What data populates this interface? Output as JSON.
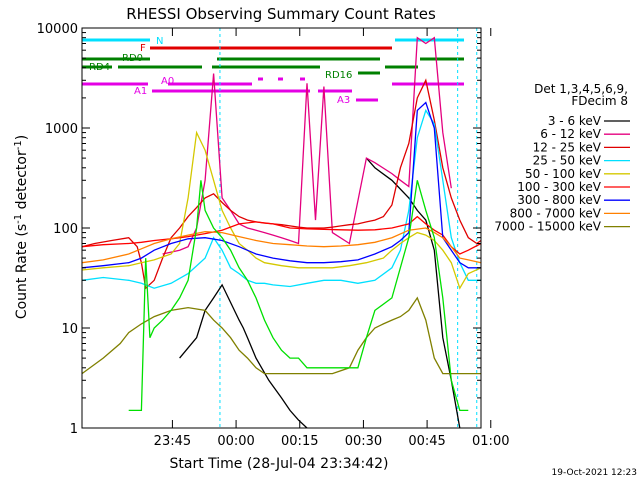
{
  "chart_data": {
    "type": "line",
    "title": "RHESSI Observing Summary Count Rates",
    "xlabel": "Start Time (28-Jul-04 23:34:42)",
    "ylabel": "Count Rate (s-1 detector-1)",
    "ylabel_parts": {
      "pre": "Count Rate (s",
      "sup": "-1",
      "mid": " detector",
      "sup2": "-1",
      "post": ")"
    },
    "yscale": "log",
    "ylim": [
      1,
      10000
    ],
    "xlim": [
      -11,
      83
    ],
    "yticks": [
      {
        "value": 1,
        "label": "1"
      },
      {
        "value": 10,
        "label": "10"
      },
      {
        "value": 100,
        "label": "100"
      },
      {
        "value": 1000,
        "label": "1000"
      },
      {
        "value": 10000,
        "label": "10000"
      }
    ],
    "xticks": [
      {
        "value": 10.3,
        "label": "23:45"
      },
      {
        "value": 25.3,
        "label": "00:00"
      },
      {
        "value": 40.3,
        "label": "00:15"
      },
      {
        "value": 55.3,
        "label": "00:30"
      },
      {
        "value": 70.3,
        "label": "00:45"
      },
      {
        "value": 85.3,
        "label": "01:00"
      }
    ],
    "legend_header": [
      "Det 1,3,4,5,6,9,",
      "FDecim 8"
    ],
    "legend_position": "right",
    "timestamp": "19-Oct-2021 12:23",
    "series": [
      {
        "name": "3 - 6 keV",
        "color": "#000000",
        "x": [
          -11,
          3,
          12,
          16,
          18,
          20,
          22,
          24,
          26,
          27,
          28,
          30,
          33,
          36,
          38,
          40,
          42,
          44,
          46,
          48,
          56,
          58,
          62,
          66,
          68,
          70,
          72,
          74,
          76,
          78,
          80,
          83
        ],
        "y": [
          null,
          null,
          5,
          8,
          15,
          20,
          27,
          18,
          12,
          10,
          8,
          5,
          3,
          2,
          1.5,
          1.2,
          1,
          null,
          null,
          null,
          500,
          400,
          300,
          200,
          150,
          120,
          60,
          8,
          3,
          1,
          null,
          null
        ]
      },
      {
        "name": "6 - 12 keV",
        "color": "#e4007f",
        "x": [
          -11,
          3,
          8,
          12,
          14,
          16,
          18,
          20,
          22,
          24,
          26,
          28,
          30,
          32,
          34,
          36,
          38,
          40,
          42,
          44,
          46,
          48,
          52,
          56,
          58,
          62,
          64,
          66,
          68,
          70,
          72,
          74,
          76,
          78,
          80,
          83
        ],
        "y": [
          null,
          null,
          55,
          60,
          65,
          100,
          300,
          3500,
          200,
          150,
          110,
          100,
          95,
          90,
          85,
          80,
          75,
          70,
          2800,
          120,
          2600,
          90,
          70,
          500,
          450,
          350,
          300,
          260,
          8000,
          7000,
          8000,
          900,
          250,
          null,
          null,
          null
        ]
      },
      {
        "name": "12 - 25 keV",
        "color": "#e00000",
        "x": [
          -11,
          -8,
          -4,
          0,
          2,
          3,
          4,
          6,
          8,
          10,
          12,
          14,
          16,
          18,
          20,
          22,
          24,
          26,
          28,
          30,
          32,
          34,
          36,
          38,
          40,
          42,
          44,
          46,
          48,
          50,
          52,
          54,
          56,
          58,
          60,
          62,
          64,
          66,
          68,
          70,
          72,
          74,
          76,
          78,
          80,
          82,
          83
        ],
        "y": [
          65,
          70,
          75,
          80,
          65,
          45,
          25,
          30,
          50,
          80,
          100,
          130,
          160,
          200,
          220,
          180,
          150,
          130,
          120,
          115,
          112,
          110,
          108,
          105,
          102,
          100,
          100,
          100,
          102,
          105,
          108,
          110,
          115,
          120,
          130,
          170,
          400,
          700,
          2000,
          3000,
          1200,
          400,
          200,
          120,
          80,
          70,
          75
        ]
      },
      {
        "name": "25 - 50 keV",
        "color": "#00e0ff",
        "x": [
          -11,
          -6,
          0,
          3,
          6,
          10,
          14,
          18,
          20,
          22,
          24,
          26,
          28,
          30,
          32,
          34,
          38,
          42,
          46,
          50,
          54,
          58,
          62,
          64,
          66,
          68,
          70,
          72,
          74,
          76,
          78,
          80,
          83
        ],
        "y": [
          30,
          32,
          30,
          28,
          25,
          28,
          35,
          50,
          80,
          60,
          40,
          35,
          30,
          28,
          28,
          27,
          26,
          28,
          30,
          30,
          28,
          30,
          40,
          60,
          150,
          800,
          1500,
          1100,
          300,
          80,
          45,
          30,
          30
        ]
      },
      {
        "name": "50 - 100 keV",
        "color": "#d4c800",
        "x": [
          -11,
          -6,
          0,
          3,
          6,
          10,
          12,
          14,
          16,
          18,
          20,
          22,
          24,
          26,
          28,
          30,
          32,
          36,
          40,
          44,
          48,
          52,
          56,
          60,
          62,
          64,
          66,
          68,
          70,
          72,
          74,
          76,
          78,
          80,
          83
        ],
        "y": [
          38,
          40,
          42,
          45,
          48,
          55,
          70,
          200,
          900,
          600,
          300,
          150,
          100,
          70,
          60,
          50,
          45,
          42,
          40,
          40,
          40,
          42,
          45,
          50,
          60,
          70,
          80,
          90,
          85,
          75,
          60,
          45,
          25,
          35,
          40
        ]
      },
      {
        "name": "100 - 300 keV",
        "color": "#ff0000",
        "x": [
          -11,
          -6,
          0,
          3,
          6,
          10,
          14,
          18,
          22,
          26,
          30,
          34,
          38,
          42,
          46,
          50,
          54,
          58,
          62,
          66,
          68,
          70,
          72,
          74,
          76,
          78,
          80,
          83
        ],
        "y": [
          65,
          68,
          70,
          72,
          75,
          78,
          82,
          88,
          95,
          110,
          115,
          110,
          100,
          98,
          97,
          96,
          95,
          96,
          100,
          110,
          130,
          110,
          95,
          85,
          65,
          55,
          60,
          70
        ]
      },
      {
        "name": "300 - 800 keV",
        "color": "#0000ff",
        "x": [
          -11,
          -6,
          0,
          3,
          6,
          10,
          14,
          18,
          22,
          26,
          30,
          34,
          38,
          42,
          46,
          50,
          54,
          58,
          62,
          64,
          66,
          68,
          70,
          72,
          74,
          76,
          78,
          80,
          83
        ],
        "y": [
          40,
          42,
          45,
          50,
          60,
          70,
          78,
          80,
          75,
          65,
          55,
          50,
          47,
          45,
          45,
          46,
          48,
          55,
          65,
          75,
          90,
          1500,
          1800,
          1000,
          80,
          60,
          45,
          40,
          40
        ]
      },
      {
        "name": "800 - 7000 keV",
        "color": "#ff8000",
        "x": [
          -11,
          -6,
          0,
          3,
          6,
          10,
          14,
          18,
          22,
          26,
          30,
          34,
          38,
          42,
          46,
          50,
          54,
          58,
          62,
          66,
          70,
          72,
          74,
          76,
          78,
          80,
          83
        ],
        "y": [
          45,
          48,
          55,
          62,
          70,
          78,
          85,
          92,
          90,
          82,
          75,
          70,
          68,
          66,
          65,
          66,
          68,
          72,
          80,
          95,
          100,
          90,
          80,
          65,
          50,
          48,
          45
        ]
      },
      {
        "name": "7000 - 15000 keV",
        "color": "#808000",
        "x": [
          -11,
          -6,
          -2,
          0,
          3,
          6,
          10,
          14,
          18,
          20,
          22,
          24,
          26,
          28,
          30,
          32,
          34,
          36,
          38,
          40,
          44,
          48,
          52,
          54,
          56,
          58,
          60,
          62,
          64,
          66,
          68,
          70,
          72,
          74,
          76,
          78,
          80,
          83
        ],
        "y": [
          3.5,
          5,
          7,
          9,
          11,
          13,
          15,
          16,
          15,
          12,
          10,
          8,
          6,
          5,
          4,
          3.5,
          3.5,
          3.5,
          3.5,
          3.5,
          3.5,
          3.5,
          4,
          6,
          8,
          10,
          11,
          12,
          13,
          15,
          20,
          12,
          5,
          3.5,
          3.5,
          3.5,
          3.5,
          3.5
        ]
      },
      {
        "name": "",
        "color": "#00e000",
        "x": [
          -11,
          -4,
          0,
          2,
          3,
          4,
          5,
          6,
          8,
          10,
          12,
          14,
          16,
          17,
          18,
          20,
          22,
          24,
          26,
          28,
          30,
          32,
          34,
          36,
          38,
          40,
          42,
          44,
          46,
          48,
          50,
          52,
          54,
          56,
          58,
          62,
          66,
          68,
          70,
          72,
          74,
          76,
          78,
          80,
          83
        ],
        "y": [
          null,
          null,
          1.5,
          1.5,
          1.5,
          50,
          8,
          10,
          12,
          15,
          20,
          30,
          100,
          300,
          150,
          100,
          80,
          60,
          40,
          30,
          20,
          12,
          8,
          6,
          5,
          5,
          4,
          4,
          4,
          4,
          4,
          4,
          4,
          8,
          15,
          20,
          80,
          300,
          150,
          80,
          20,
          3,
          1.5,
          1.5,
          null
        ]
      }
    ],
    "annotations": [
      {
        "label": "N",
        "color": "#00e0ff"
      },
      {
        "label": "F",
        "color": "#e00000"
      },
      {
        "label": "RD0",
        "color": "#008000"
      },
      {
        "label": "RD4",
        "color": "#008000"
      },
      {
        "label": "RD16",
        "color": "#008000"
      },
      {
        "label": "A0",
        "color": "#e400e4"
      },
      {
        "label": "A1",
        "color": "#e400e4"
      },
      {
        "label": "A3",
        "color": "#e400e4"
      }
    ]
  }
}
